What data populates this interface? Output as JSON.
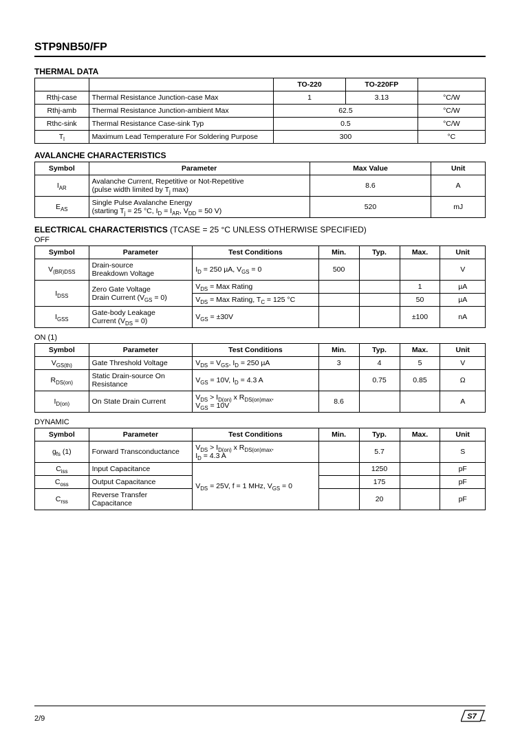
{
  "title": "STP9NB50/FP",
  "pageNumber": "2/9",
  "thermal": {
    "heading": "THERMAL DATA",
    "headers": [
      "",
      "",
      "TO-220",
      "TO-220FP",
      ""
    ],
    "colWidths": [
      "12%",
      "41%",
      "16%",
      "16%",
      "15%"
    ],
    "rows": [
      {
        "c0": "Rthj-case",
        "c1": "Thermal Resistance Junction-case Max",
        "c2": "1",
        "c3": "3.13",
        "c4": "°C/W",
        "span": false
      },
      {
        "c0": "Rthj-amb",
        "c1": "Thermal Resistance Junction-ambient Max",
        "c23": "62.5",
        "c4": "°C/W",
        "span": true
      },
      {
        "c0": "Rthc-sink",
        "c1": "Thermal Resistance Case-sink Typ",
        "c23": "0.5",
        "c4": "°C/W",
        "span": true
      },
      {
        "c0": "T<sub>l</sub>",
        "c1": "Maximum Lead Temperature For Soldering Purpose",
        "c23": "300",
        "c4": "°C",
        "span": true
      }
    ]
  },
  "avalanche": {
    "heading": "AVALANCHE CHARACTERISTICS",
    "headers": [
      "Symbol",
      "Parameter",
      "Max Value",
      "Unit"
    ],
    "colWidths": [
      "12%",
      "49%",
      "27%",
      "12%"
    ],
    "rows": [
      {
        "sym": "I<sub>AR</sub>",
        "param": "Avalanche Current, Repetitive or Not-Repetitive<br>(pulse width limited by T<sub>j</sub> max)",
        "val": "8.6",
        "unit": "A"
      },
      {
        "sym": "E<sub>AS</sub>",
        "param": "Single Pulse Avalanche Energy<br>(starting T<sub>j</sub> = 25 °C, I<sub>D</sub> = I<sub>AR</sub>, V<sub>DD</sub> = 50 V)",
        "val": "520",
        "unit": "mJ"
      }
    ]
  },
  "elecHeading": "ELECTRICAL CHARACTERISTICS",
  "elecCond": " (TCASE = 25 °C UNLESS OTHERWISE SPECIFIED)",
  "elecColWidths": [
    "12%",
    "23%",
    "28%",
    "9%",
    "9%",
    "9%",
    "10%"
  ],
  "elecHeaders": [
    "Symbol",
    "Parameter",
    "Test Conditions",
    "Min.",
    "Typ.",
    "Max.",
    "Unit"
  ],
  "off": {
    "sub": "OFF",
    "rows": [
      {
        "sym": "V<sub>(BR)DSS</sub>",
        "param": "Drain-source<br>Breakdown Voltage",
        "cond": "I<sub>D</sub> = 250 µA, V<sub>GS</sub> = 0",
        "min": "500",
        "typ": "",
        "max": "",
        "unit": "V"
      }
    ],
    "idssSym": "I<sub>DSS</sub>",
    "idssParam": "Zero Gate Voltage<br>Drain Current (V<sub>GS</sub> = 0)",
    "idssRows": [
      {
        "cond": "V<sub>DS</sub> = Max Rating",
        "min": "",
        "typ": "",
        "max": "1",
        "unit": "µA"
      },
      {
        "cond": "V<sub>DS</sub> = Max Rating, T<sub>C</sub> = 125 °C",
        "min": "",
        "typ": "",
        "max": "50",
        "unit": "µA"
      }
    ],
    "tail": [
      {
        "sym": "I<sub>GSS</sub>",
        "param": "Gate-body Leakage<br>Current (V<sub>DS</sub> = 0)",
        "cond": "V<sub>GS</sub> = ±30V",
        "min": "",
        "typ": "",
        "max": "±100",
        "unit": "nA"
      }
    ]
  },
  "on": {
    "sub": "ON (1)",
    "rows": [
      {
        "sym": "V<sub>GS(th)</sub>",
        "param": "Gate Threshold Voltage",
        "cond": "V<sub>DS</sub> = V<sub>GS</sub>, I<sub>D</sub> = 250 µA",
        "min": "3",
        "typ": "4",
        "max": "5",
        "unit": "V"
      },
      {
        "sym": "R<sub>DS(on)</sub>",
        "param": "Static Drain-source On<br>Resistance",
        "cond": "V<sub>GS</sub> = 10V, I<sub>D</sub> = 4.3 A",
        "min": "",
        "typ": "0.75",
        "max": "0.85",
        "unit": "Ω"
      },
      {
        "sym": "I<sub>D(on)</sub>",
        "param": "On State Drain Current",
        "cond": "V<sub>DS</sub> > I<sub>D(on)</sub> x R<sub>DS(on)max</sub>,<br>V<sub>GS</sub> = 10V",
        "min": "8.6",
        "typ": "",
        "max": "",
        "unit": "A"
      }
    ]
  },
  "dynamic": {
    "sub": "DYNAMIC",
    "first": {
      "sym": "g<sub>fs</sub> (1)",
      "param": "Forward Transconductance",
      "cond": "V<sub>DS</sub> > I<sub>D(on)</sub> x R<sub>DS(on)max</sub>,<br>I<sub>D</sub> = 4.3 A",
      "min": "",
      "typ": "5.7",
      "max": "",
      "unit": "S"
    },
    "capCond": "V<sub>DS</sub> = 25V, f = 1 MHz, V<sub>GS</sub> = 0",
    "capRows": [
      {
        "sym": "C<sub>iss</sub>",
        "param": "Input Capacitance",
        "typ": "1250",
        "unit": "pF"
      },
      {
        "sym": "C<sub>oss</sub>",
        "param": "Output Capacitance",
        "typ": "175",
        "unit": "pF"
      },
      {
        "sym": "C<sub>rss</sub>",
        "param": "Reverse Transfer<br>Capacitance",
        "typ": "20",
        "unit": "pF"
      }
    ]
  }
}
